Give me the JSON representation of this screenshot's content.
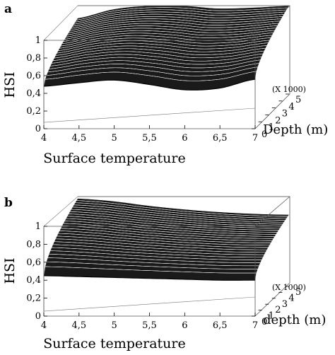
{
  "chart_data": [
    {
      "type": "surface",
      "panel_label": "a",
      "xlabel": "Surface temperature",
      "ylabel": "Depth (m)",
      "zlabel": "HSI",
      "y_multiplier_note": "(X 1000)",
      "x_ticks": [
        "4",
        "4,5",
        "5",
        "5,5",
        "6",
        "6,5",
        "7"
      ],
      "y_ticks": [
        "0",
        "1",
        "2",
        "3",
        "4",
        "5"
      ],
      "z_ticks": [
        "0",
        "0,2",
        "0,4",
        "0,6",
        "0,8",
        "1"
      ],
      "xlim": [
        4,
        7
      ],
      "ylim": [
        0,
        5
      ],
      "zlim": [
        0,
        1
      ],
      "grid": false,
      "x": [
        4,
        4.5,
        5,
        5.5,
        6,
        6.5,
        7
      ],
      "front_edge_depth0": [
        0.48,
        0.52,
        0.55,
        0.5,
        0.44,
        0.46,
        0.56
      ],
      "back_edge_depth5": [
        0.86,
        0.96,
        1.0,
        1.0,
        0.97,
        0.98,
        1.0
      ]
    },
    {
      "type": "surface",
      "panel_label": "b",
      "xlabel": "Surface temperature",
      "ylabel": "depth (m)",
      "zlabel": "HSI",
      "y_multiplier_note": "(X 1000)",
      "x_ticks": [
        "4",
        "4,5",
        "5",
        "5,5",
        "6",
        "6,5",
        "7"
      ],
      "y_ticks": [
        "0",
        "1",
        "2",
        "3",
        "4",
        "5"
      ],
      "z_ticks": [
        "0",
        "0,2",
        "0,4",
        "0,6",
        "0,8",
        "1"
      ],
      "xlim": [
        4,
        7
      ],
      "ylim": [
        0,
        5
      ],
      "zlim": [
        0,
        1
      ],
      "grid": false,
      "x": [
        4,
        4.5,
        5,
        5.5,
        6,
        6.5,
        7
      ],
      "front_edge_depth0": [
        0.45,
        0.44,
        0.43,
        0.42,
        0.41,
        0.4,
        0.4
      ],
      "back_edge_depth5": [
        0.98,
        0.95,
        0.9,
        0.86,
        0.83,
        0.81,
        0.8
      ]
    }
  ]
}
